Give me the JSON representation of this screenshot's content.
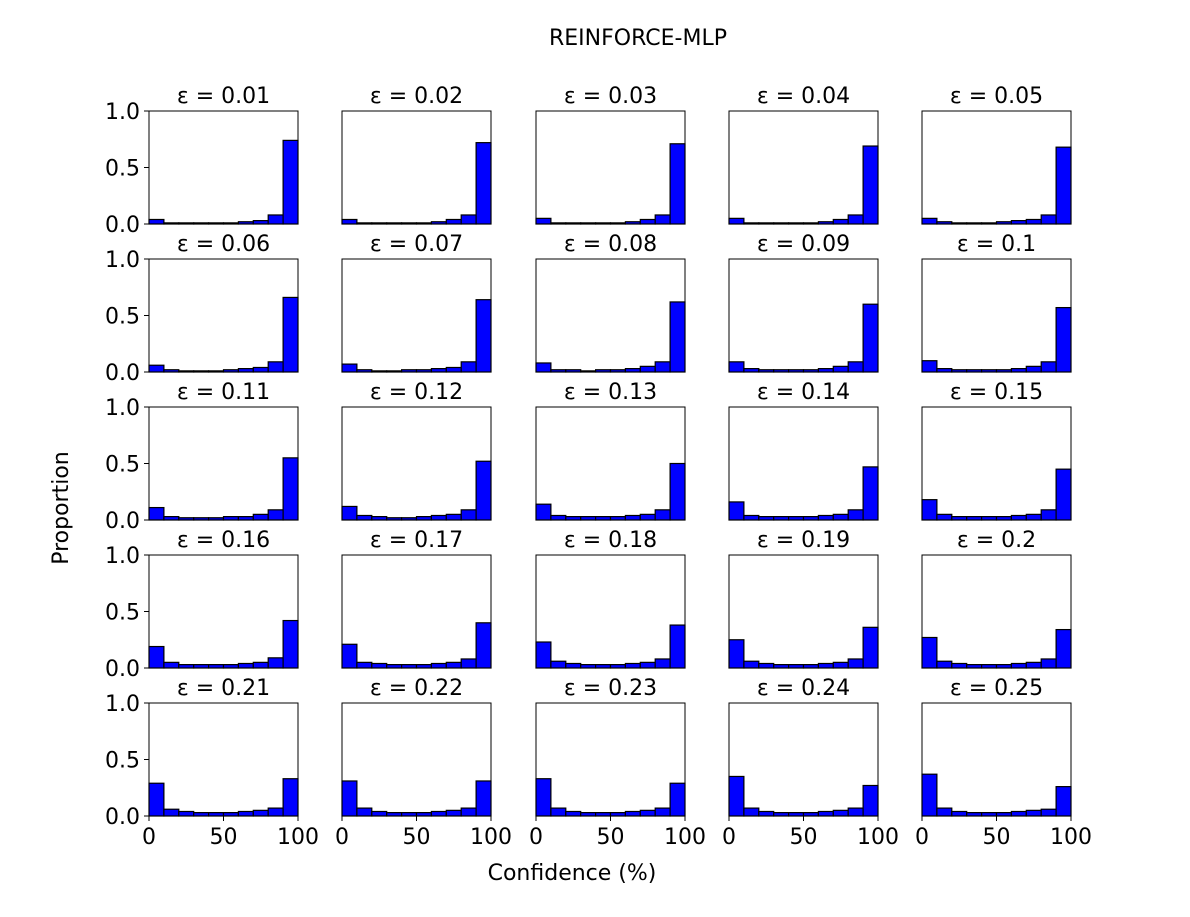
{
  "figure": {
    "title": "REINFORCE-MLP",
    "xlabel": "Confidence (%)",
    "ylabel": "Proportion"
  },
  "style": {
    "bar_fill": "#0000ff",
    "bar_edge": "#000000",
    "axes_edge": "#000000",
    "background": "#ffffff"
  },
  "chart_data": {
    "type": "bar",
    "layout": "5x5 small multiples (histograms)",
    "bin_edges": [
      0,
      10,
      20,
      30,
      40,
      50,
      60,
      70,
      80,
      90,
      100
    ],
    "xlim": [
      0,
      100
    ],
    "ylim": [
      0,
      1.0
    ],
    "xticks": [
      0,
      50,
      100
    ],
    "xtick_labels": [
      "0",
      "50",
      "100"
    ],
    "yticks": [
      0.0,
      0.5,
      1.0
    ],
    "ytick_labels": [
      "0.0",
      "0.5",
      "1.0"
    ],
    "grid": false,
    "legend": "none",
    "panels": [
      {
        "title": "ε = 0.01",
        "values": [
          0.04,
          0.01,
          0.01,
          0.01,
          0.01,
          0.01,
          0.02,
          0.03,
          0.08,
          0.74
        ]
      },
      {
        "title": "ε = 0.02",
        "values": [
          0.04,
          0.01,
          0.01,
          0.01,
          0.01,
          0.01,
          0.02,
          0.04,
          0.08,
          0.72
        ]
      },
      {
        "title": "ε = 0.03",
        "values": [
          0.05,
          0.01,
          0.01,
          0.01,
          0.01,
          0.01,
          0.02,
          0.04,
          0.08,
          0.71
        ]
      },
      {
        "title": "ε = 0.04",
        "values": [
          0.05,
          0.01,
          0.01,
          0.01,
          0.01,
          0.01,
          0.02,
          0.04,
          0.08,
          0.69
        ]
      },
      {
        "title": "ε = 0.05",
        "values": [
          0.05,
          0.02,
          0.01,
          0.01,
          0.01,
          0.02,
          0.03,
          0.04,
          0.08,
          0.68
        ]
      },
      {
        "title": "ε = 0.06",
        "values": [
          0.06,
          0.02,
          0.01,
          0.01,
          0.01,
          0.02,
          0.03,
          0.04,
          0.09,
          0.66
        ]
      },
      {
        "title": "ε = 0.07",
        "values": [
          0.07,
          0.02,
          0.01,
          0.01,
          0.02,
          0.02,
          0.03,
          0.04,
          0.09,
          0.64
        ]
      },
      {
        "title": "ε = 0.08",
        "values": [
          0.08,
          0.02,
          0.02,
          0.01,
          0.02,
          0.02,
          0.03,
          0.05,
          0.09,
          0.62
        ]
      },
      {
        "title": "ε = 0.09",
        "values": [
          0.09,
          0.03,
          0.02,
          0.02,
          0.02,
          0.02,
          0.03,
          0.05,
          0.09,
          0.6
        ]
      },
      {
        "title": "ε = 0.1",
        "values": [
          0.1,
          0.03,
          0.02,
          0.02,
          0.02,
          0.02,
          0.03,
          0.05,
          0.09,
          0.57
        ]
      },
      {
        "title": "ε = 0.11",
        "values": [
          0.11,
          0.03,
          0.02,
          0.02,
          0.02,
          0.03,
          0.03,
          0.05,
          0.09,
          0.55
        ]
      },
      {
        "title": "ε = 0.12",
        "values": [
          0.12,
          0.04,
          0.03,
          0.02,
          0.02,
          0.03,
          0.04,
          0.05,
          0.09,
          0.52
        ]
      },
      {
        "title": "ε = 0.13",
        "values": [
          0.14,
          0.04,
          0.03,
          0.03,
          0.03,
          0.03,
          0.04,
          0.05,
          0.09,
          0.5
        ]
      },
      {
        "title": "ε = 0.14",
        "values": [
          0.16,
          0.04,
          0.03,
          0.03,
          0.03,
          0.03,
          0.04,
          0.05,
          0.09,
          0.47
        ]
      },
      {
        "title": "ε = 0.15",
        "values": [
          0.18,
          0.05,
          0.03,
          0.03,
          0.03,
          0.03,
          0.04,
          0.05,
          0.09,
          0.45
        ]
      },
      {
        "title": "ε = 0.16",
        "values": [
          0.19,
          0.05,
          0.03,
          0.03,
          0.03,
          0.03,
          0.04,
          0.05,
          0.09,
          0.42
        ]
      },
      {
        "title": "ε = 0.17",
        "values": [
          0.21,
          0.05,
          0.04,
          0.03,
          0.03,
          0.03,
          0.04,
          0.05,
          0.08,
          0.4
        ]
      },
      {
        "title": "ε = 0.18",
        "values": [
          0.23,
          0.06,
          0.04,
          0.03,
          0.03,
          0.03,
          0.04,
          0.05,
          0.08,
          0.38
        ]
      },
      {
        "title": "ε = 0.19",
        "values": [
          0.25,
          0.06,
          0.04,
          0.03,
          0.03,
          0.03,
          0.04,
          0.05,
          0.08,
          0.36
        ]
      },
      {
        "title": "ε = 0.2",
        "values": [
          0.27,
          0.06,
          0.04,
          0.03,
          0.03,
          0.03,
          0.04,
          0.05,
          0.08,
          0.34
        ]
      },
      {
        "title": "ε = 0.21",
        "values": [
          0.29,
          0.06,
          0.04,
          0.03,
          0.03,
          0.03,
          0.04,
          0.05,
          0.07,
          0.33
        ]
      },
      {
        "title": "ε = 0.22",
        "values": [
          0.31,
          0.07,
          0.04,
          0.03,
          0.03,
          0.03,
          0.04,
          0.05,
          0.07,
          0.31
        ]
      },
      {
        "title": "ε = 0.23",
        "values": [
          0.33,
          0.07,
          0.04,
          0.03,
          0.03,
          0.03,
          0.04,
          0.05,
          0.07,
          0.29
        ]
      },
      {
        "title": "ε = 0.24",
        "values": [
          0.35,
          0.07,
          0.04,
          0.03,
          0.03,
          0.03,
          0.04,
          0.05,
          0.07,
          0.27
        ]
      },
      {
        "title": "ε = 0.25",
        "values": [
          0.37,
          0.07,
          0.04,
          0.03,
          0.03,
          0.03,
          0.04,
          0.05,
          0.06,
          0.26
        ]
      }
    ]
  }
}
